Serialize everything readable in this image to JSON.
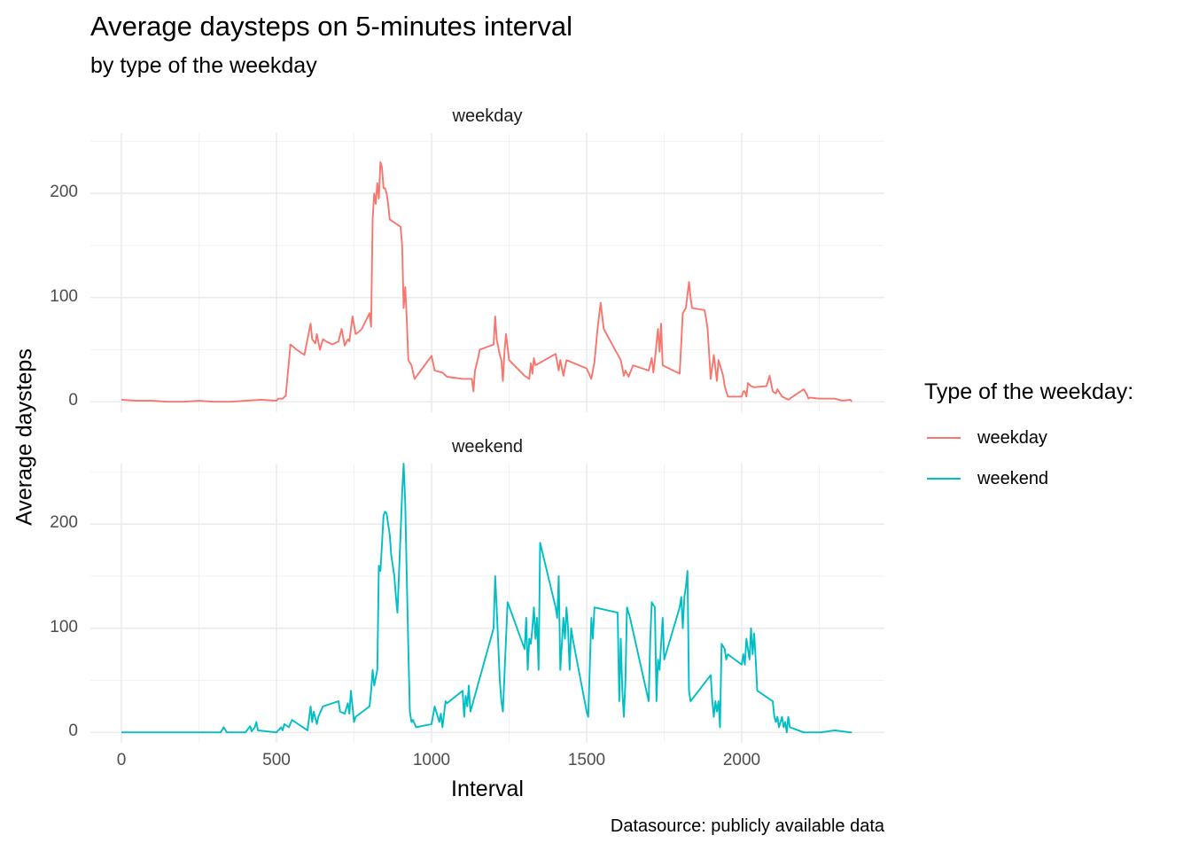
{
  "title": "Average daysteps on 5-minutes interval",
  "subtitle": "by type of the weekday",
  "caption": "Datasource: publicly available data",
  "legend": {
    "title": "Type of the weekday:",
    "items": [
      {
        "label": "weekday",
        "color": "#F8766D"
      },
      {
        "label": "weekend",
        "color": "#00BFC4"
      }
    ]
  },
  "chart_data": {
    "type": "line",
    "facet": "rows",
    "xlabel": "Interval",
    "ylabel": "Average daysteps",
    "xlim": [
      -100,
      2460
    ],
    "ylim": [
      -10,
      258
    ],
    "x_ticks": [
      0,
      500,
      1000,
      1500,
      2000
    ],
    "y_ticks": [
      0,
      100,
      200
    ],
    "grid": true,
    "legend_position": "right",
    "panels": [
      {
        "strip": "weekday",
        "series": "weekday",
        "color": "#F8766D",
        "points": [
          [
            0,
            2
          ],
          [
            50,
            1
          ],
          [
            100,
            1
          ],
          [
            150,
            0
          ],
          [
            200,
            0
          ],
          [
            250,
            1
          ],
          [
            300,
            0
          ],
          [
            350,
            0
          ],
          [
            400,
            1
          ],
          [
            450,
            2
          ],
          [
            500,
            1
          ],
          [
            505,
            3
          ],
          [
            520,
            3
          ],
          [
            530,
            6
          ],
          [
            545,
            55
          ],
          [
            565,
            50
          ],
          [
            590,
            45
          ],
          [
            600,
            60
          ],
          [
            610,
            75
          ],
          [
            615,
            60
          ],
          [
            625,
            56
          ],
          [
            630,
            65
          ],
          [
            640,
            50
          ],
          [
            650,
            60
          ],
          [
            660,
            58
          ],
          [
            680,
            55
          ],
          [
            700,
            58
          ],
          [
            710,
            70
          ],
          [
            720,
            54
          ],
          [
            730,
            60
          ],
          [
            735,
            58
          ],
          [
            745,
            82
          ],
          [
            755,
            65
          ],
          [
            765,
            67
          ],
          [
            775,
            70
          ],
          [
            800,
            85
          ],
          [
            805,
            72
          ],
          [
            810,
            175
          ],
          [
            815,
            200
          ],
          [
            820,
            190
          ],
          [
            825,
            210
          ],
          [
            830,
            195
          ],
          [
            835,
            230
          ],
          [
            840,
            225
          ],
          [
            845,
            205
          ],
          [
            850,
            205
          ],
          [
            855,
            200
          ],
          [
            860,
            190
          ],
          [
            865,
            175
          ],
          [
            880,
            172
          ],
          [
            900,
            168
          ],
          [
            905,
            150
          ],
          [
            910,
            90
          ],
          [
            915,
            110
          ],
          [
            920,
            80
          ],
          [
            925,
            40
          ],
          [
            935,
            35
          ],
          [
            945,
            22
          ],
          [
            1000,
            44
          ],
          [
            1010,
            30
          ],
          [
            1035,
            28
          ],
          [
            1050,
            24
          ],
          [
            1100,
            22
          ],
          [
            1130,
            22
          ],
          [
            1135,
            10
          ],
          [
            1140,
            30
          ],
          [
            1150,
            42
          ],
          [
            1155,
            50
          ],
          [
            1200,
            55
          ],
          [
            1205,
            82
          ],
          [
            1210,
            60
          ],
          [
            1220,
            45
          ],
          [
            1225,
            40
          ],
          [
            1230,
            20
          ],
          [
            1235,
            48
          ],
          [
            1240,
            65
          ],
          [
            1250,
            40
          ],
          [
            1300,
            25
          ],
          [
            1315,
            22
          ],
          [
            1320,
            37
          ],
          [
            1325,
            27
          ],
          [
            1330,
            42
          ],
          [
            1335,
            35
          ],
          [
            1400,
            46
          ],
          [
            1410,
            30
          ],
          [
            1415,
            40
          ],
          [
            1425,
            25
          ],
          [
            1435,
            40
          ],
          [
            1500,
            32
          ],
          [
            1515,
            22
          ],
          [
            1525,
            38
          ],
          [
            1535,
            70
          ],
          [
            1545,
            95
          ],
          [
            1555,
            70
          ],
          [
            1610,
            40
          ],
          [
            1620,
            25
          ],
          [
            1625,
            30
          ],
          [
            1635,
            24
          ],
          [
            1650,
            35
          ],
          [
            1700,
            30
          ],
          [
            1710,
            42
          ],
          [
            1715,
            28
          ],
          [
            1720,
            40
          ],
          [
            1730,
            70
          ],
          [
            1735,
            48
          ],
          [
            1740,
            75
          ],
          [
            1745,
            35
          ],
          [
            1800,
            27
          ],
          [
            1810,
            85
          ],
          [
            1820,
            90
          ],
          [
            1830,
            115
          ],
          [
            1835,
            100
          ],
          [
            1840,
            90
          ],
          [
            1880,
            88
          ],
          [
            1885,
            80
          ],
          [
            1890,
            70
          ],
          [
            1900,
            22
          ],
          [
            1910,
            45
          ],
          [
            1920,
            20
          ],
          [
            1925,
            40
          ],
          [
            1935,
            30
          ],
          [
            1940,
            25
          ],
          [
            1945,
            15
          ],
          [
            1955,
            5
          ],
          [
            2000,
            5
          ],
          [
            2005,
            10
          ],
          [
            2010,
            10
          ],
          [
            2015,
            5
          ],
          [
            2020,
            18
          ],
          [
            2030,
            15
          ],
          [
            2040,
            14
          ],
          [
            2080,
            15
          ],
          [
            2090,
            25
          ],
          [
            2100,
            10
          ],
          [
            2110,
            8
          ],
          [
            2115,
            12
          ],
          [
            2130,
            5
          ],
          [
            2150,
            2
          ],
          [
            2200,
            12
          ],
          [
            2210,
            7
          ],
          [
            2215,
            3
          ],
          [
            2220,
            4
          ],
          [
            2250,
            3
          ],
          [
            2300,
            3
          ],
          [
            2325,
            1
          ],
          [
            2350,
            2
          ],
          [
            2355,
            0
          ]
        ]
      },
      {
        "strip": "weekend",
        "series": "weekend",
        "color": "#00BFC4",
        "points": [
          [
            0,
            0
          ],
          [
            100,
            0
          ],
          [
            200,
            0
          ],
          [
            300,
            0
          ],
          [
            320,
            0
          ],
          [
            330,
            5
          ],
          [
            340,
            0
          ],
          [
            400,
            0
          ],
          [
            415,
            6
          ],
          [
            420,
            1
          ],
          [
            430,
            5
          ],
          [
            435,
            10
          ],
          [
            440,
            2
          ],
          [
            500,
            0
          ],
          [
            515,
            5
          ],
          [
            520,
            2
          ],
          [
            525,
            8
          ],
          [
            540,
            5
          ],
          [
            550,
            12
          ],
          [
            560,
            10
          ],
          [
            600,
            2
          ],
          [
            610,
            25
          ],
          [
            615,
            10
          ],
          [
            620,
            20
          ],
          [
            630,
            8
          ],
          [
            635,
            15
          ],
          [
            645,
            22
          ],
          [
            650,
            25
          ],
          [
            700,
            30
          ],
          [
            705,
            20
          ],
          [
            720,
            18
          ],
          [
            730,
            28
          ],
          [
            735,
            18
          ],
          [
            740,
            40
          ],
          [
            745,
            25
          ],
          [
            750,
            10
          ],
          [
            755,
            15
          ],
          [
            800,
            25
          ],
          [
            805,
            40
          ],
          [
            810,
            60
          ],
          [
            815,
            45
          ],
          [
            825,
            60
          ],
          [
            830,
            160
          ],
          [
            835,
            155
          ],
          [
            840,
            180
          ],
          [
            845,
            208
          ],
          [
            850,
            212
          ],
          [
            855,
            210
          ],
          [
            860,
            200
          ],
          [
            865,
            190
          ],
          [
            870,
            170
          ],
          [
            880,
            150
          ],
          [
            885,
            130
          ],
          [
            890,
            115
          ],
          [
            900,
            190
          ],
          [
            905,
            230
          ],
          [
            910,
            258
          ],
          [
            915,
            220
          ],
          [
            920,
            150
          ],
          [
            925,
            80
          ],
          [
            930,
            20
          ],
          [
            935,
            10
          ],
          [
            940,
            12
          ],
          [
            950,
            5
          ],
          [
            1000,
            8
          ],
          [
            1010,
            25
          ],
          [
            1020,
            15
          ],
          [
            1025,
            10
          ],
          [
            1030,
            18
          ],
          [
            1035,
            5
          ],
          [
            1045,
            30
          ],
          [
            1050,
            28
          ],
          [
            1100,
            40
          ],
          [
            1105,
            15
          ],
          [
            1110,
            35
          ],
          [
            1115,
            25
          ],
          [
            1120,
            45
          ],
          [
            1125,
            20
          ],
          [
            1130,
            25
          ],
          [
            1200,
            100
          ],
          [
            1205,
            150
          ],
          [
            1210,
            120
          ],
          [
            1220,
            50
          ],
          [
            1225,
            30
          ],
          [
            1230,
            20
          ],
          [
            1245,
            125
          ],
          [
            1300,
            80
          ],
          [
            1305,
            110
          ],
          [
            1310,
            60
          ],
          [
            1315,
            90
          ],
          [
            1320,
            85
          ],
          [
            1325,
            100
          ],
          [
            1330,
            120
          ],
          [
            1335,
            90
          ],
          [
            1340,
            110
          ],
          [
            1345,
            60
          ],
          [
            1350,
            182
          ],
          [
            1400,
            120
          ],
          [
            1405,
            110
          ],
          [
            1410,
            150
          ],
          [
            1415,
            60
          ],
          [
            1425,
            110
          ],
          [
            1430,
            90
          ],
          [
            1435,
            120
          ],
          [
            1440,
            100
          ],
          [
            1445,
            60
          ],
          [
            1450,
            100
          ],
          [
            1455,
            90
          ],
          [
            1500,
            20
          ],
          [
            1505,
            15
          ],
          [
            1515,
            110
          ],
          [
            1520,
            90
          ],
          [
            1525,
            120
          ],
          [
            1600,
            115
          ],
          [
            1605,
            30
          ],
          [
            1610,
            90
          ],
          [
            1615,
            40
          ],
          [
            1620,
            15
          ],
          [
            1625,
            50
          ],
          [
            1630,
            120
          ],
          [
            1640,
            110
          ],
          [
            1700,
            30
          ],
          [
            1705,
            90
          ],
          [
            1710,
            125
          ],
          [
            1720,
            120
          ],
          [
            1725,
            30
          ],
          [
            1730,
            70
          ],
          [
            1735,
            60
          ],
          [
            1745,
            110
          ],
          [
            1750,
            70
          ],
          [
            1800,
            120
          ],
          [
            1805,
            130
          ],
          [
            1810,
            100
          ],
          [
            1815,
            130
          ],
          [
            1820,
            140
          ],
          [
            1825,
            155
          ],
          [
            1830,
            40
          ],
          [
            1835,
            30
          ],
          [
            1900,
            55
          ],
          [
            1905,
            30
          ],
          [
            1910,
            15
          ],
          [
            1915,
            30
          ],
          [
            1920,
            20
          ],
          [
            1925,
            30
          ],
          [
            1930,
            5
          ],
          [
            1935,
            85
          ],
          [
            1945,
            80
          ],
          [
            1950,
            70
          ],
          [
            1955,
            75
          ],
          [
            2000,
            65
          ],
          [
            2005,
            75
          ],
          [
            2010,
            65
          ],
          [
            2015,
            90
          ],
          [
            2020,
            80
          ],
          [
            2025,
            70
          ],
          [
            2030,
            100
          ],
          [
            2035,
            75
          ],
          [
            2040,
            95
          ],
          [
            2045,
            70
          ],
          [
            2050,
            40
          ],
          [
            2100,
            30
          ],
          [
            2105,
            15
          ],
          [
            2110,
            10
          ],
          [
            2115,
            15
          ],
          [
            2120,
            5
          ],
          [
            2130,
            15
          ],
          [
            2135,
            5
          ],
          [
            2140,
            10
          ],
          [
            2145,
            0
          ],
          [
            2150,
            15
          ],
          [
            2155,
            5
          ],
          [
            2200,
            0
          ],
          [
            2230,
            0
          ],
          [
            2255,
            0
          ],
          [
            2300,
            2
          ],
          [
            2350,
            0
          ],
          [
            2355,
            0
          ]
        ]
      }
    ]
  }
}
